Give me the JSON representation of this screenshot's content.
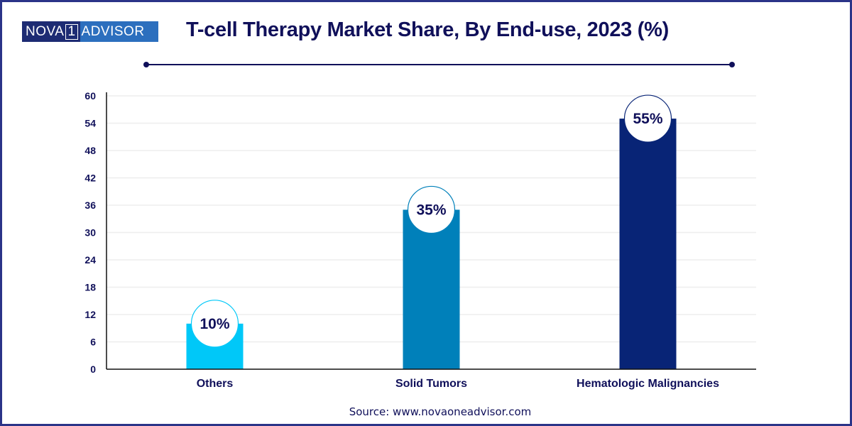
{
  "logo": {
    "left": "NOVA",
    "one": "1",
    "right": "ADVISOR"
  },
  "header": {
    "title": "T-cell Therapy Market Share, By End-use, 2023 (%)"
  },
  "source": "Source: www.novaoneadvisor.com",
  "colors": {
    "frame": "#2b3488",
    "text": "#10105a",
    "grid": "#eeeeee"
  },
  "chart_data": {
    "type": "bar",
    "title": "T-cell Therapy Market Share, By End-use, 2023 (%)",
    "xlabel": "",
    "ylabel": "",
    "categories": [
      "Others",
      "Solid Tumors",
      "Hematologic Malignancies"
    ],
    "values": [
      10,
      35,
      55
    ],
    "data_labels": [
      "10%",
      "35%",
      "55%"
    ],
    "bar_colors": [
      "#00c8f8",
      "#0080ba",
      "#082476"
    ],
    "ylim": [
      0,
      60
    ],
    "yticks": [
      0,
      6,
      12,
      18,
      24,
      30,
      36,
      42,
      48,
      54,
      60
    ],
    "grid": true,
    "legend": "none"
  }
}
